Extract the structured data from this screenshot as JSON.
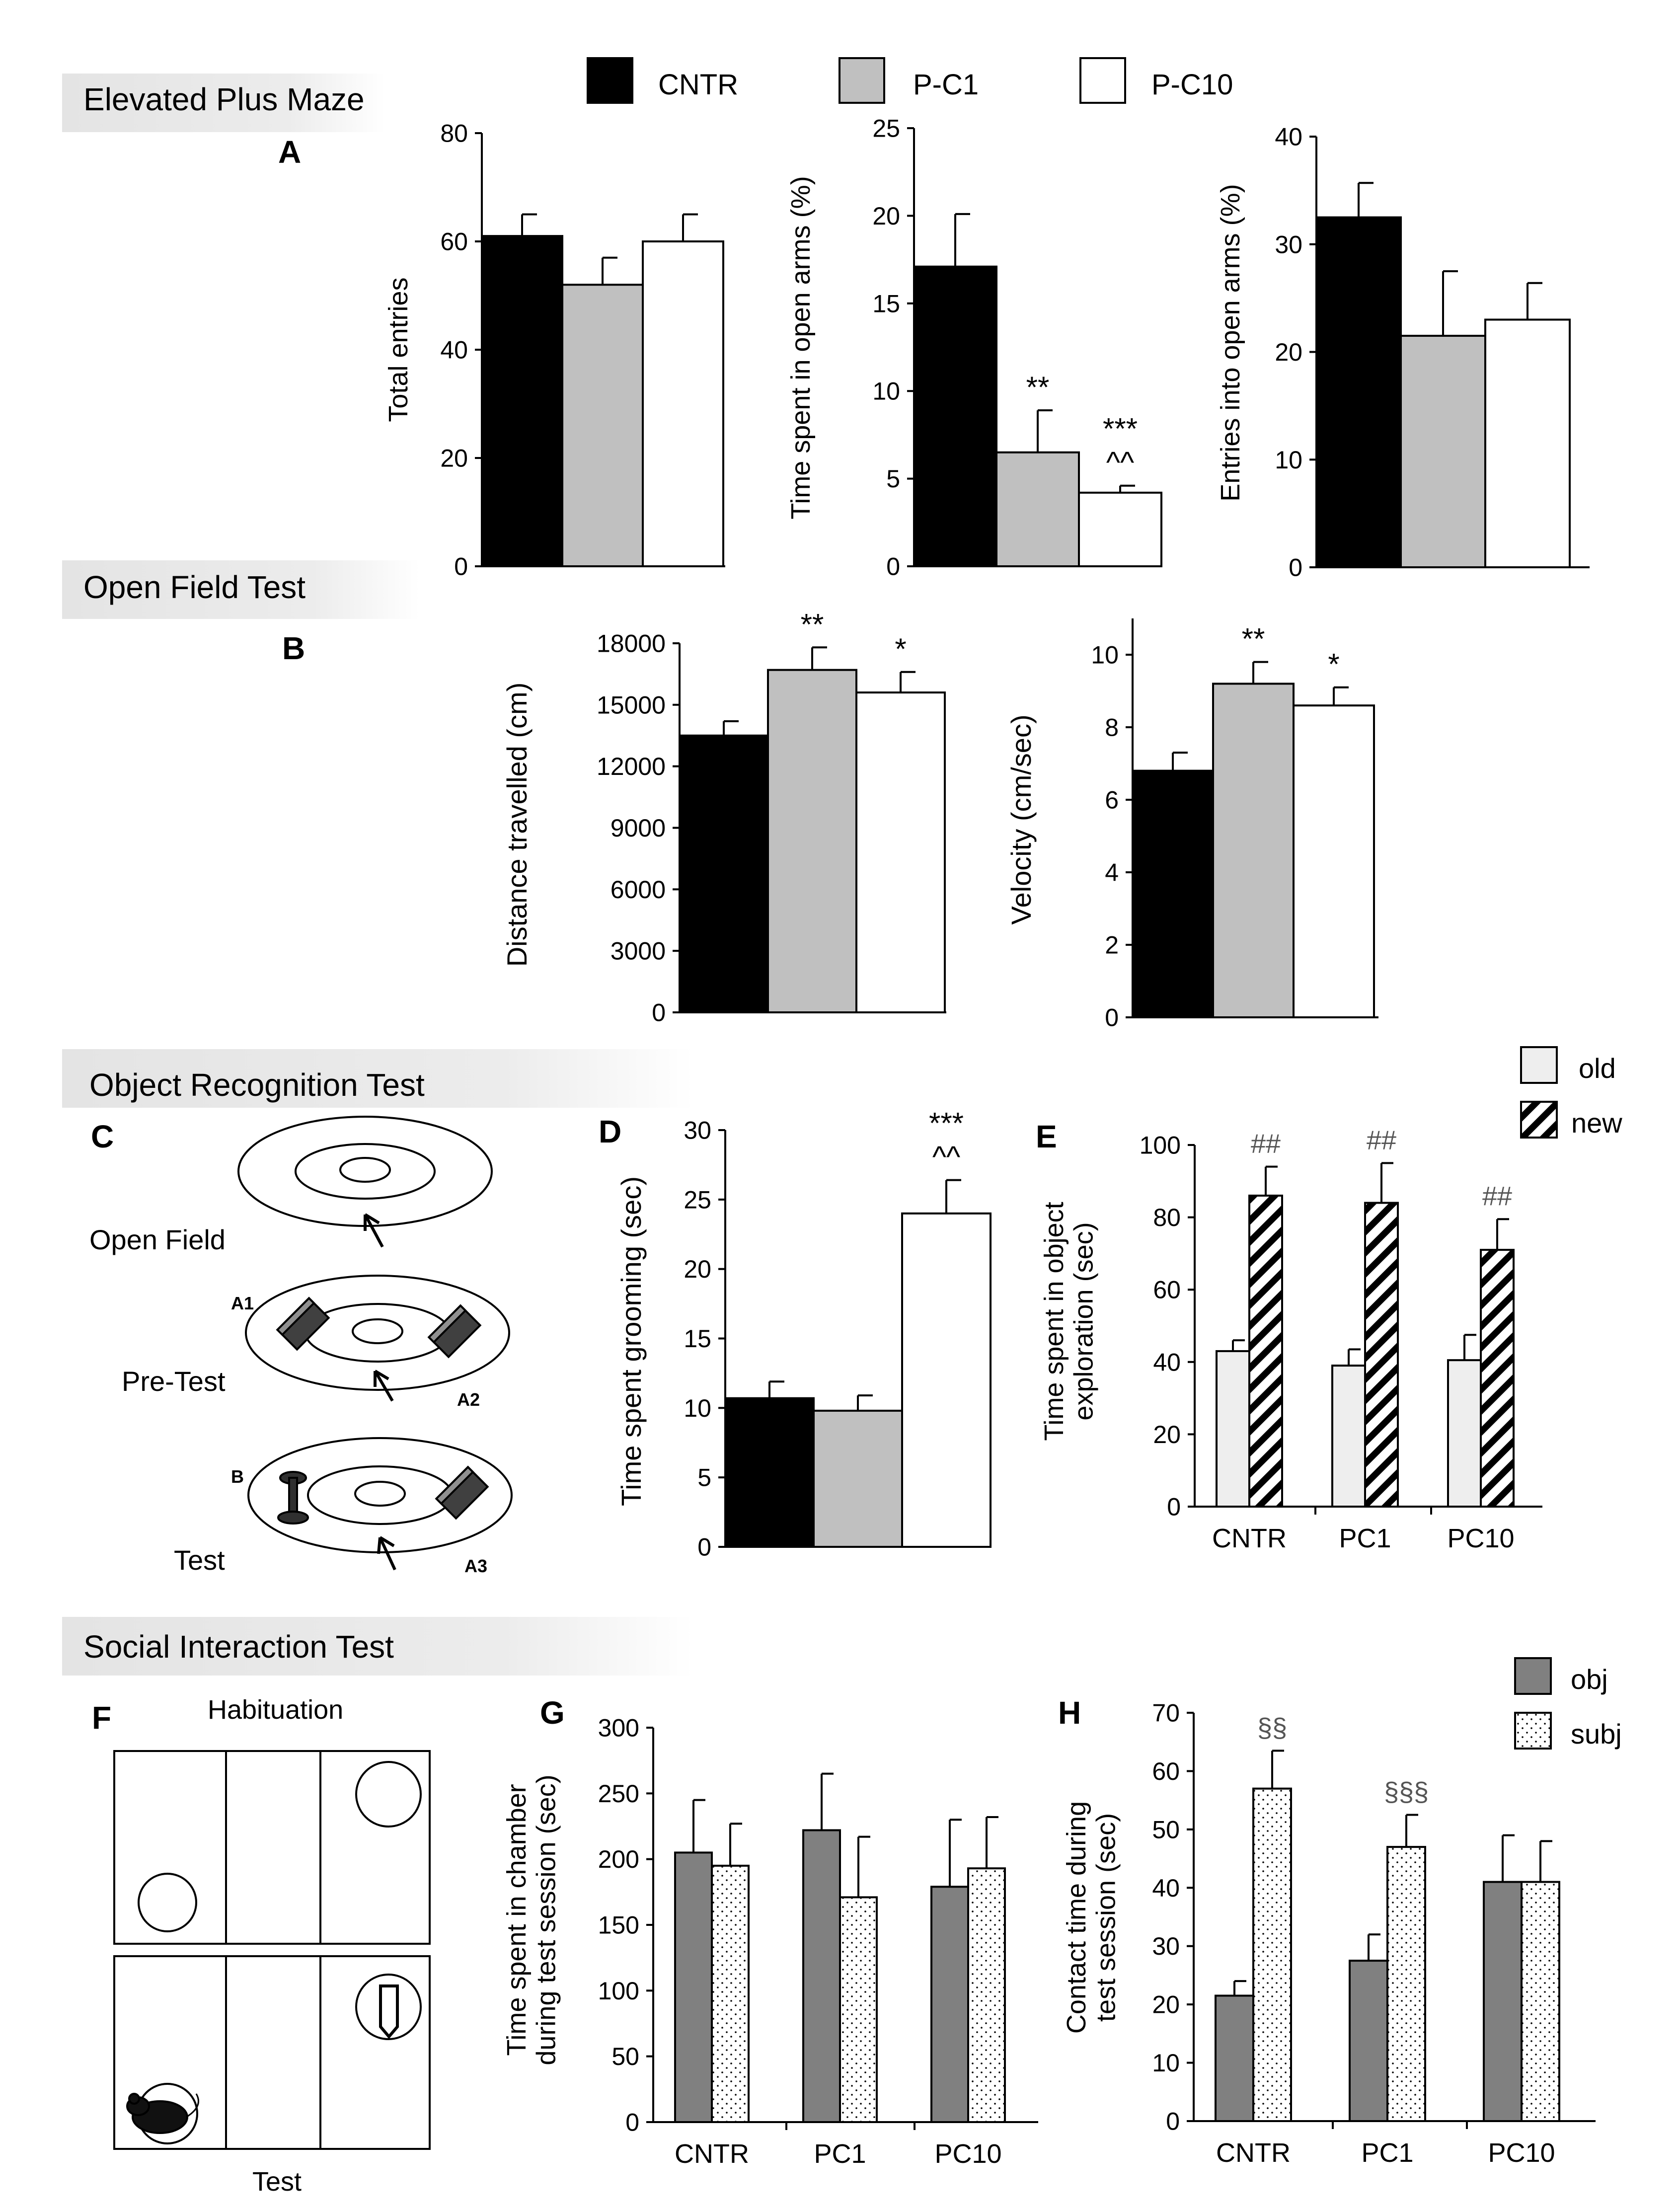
{
  "colors": {
    "cntr": "#000000",
    "pc1": "#c0c0c0",
    "pc10": "#ffffff",
    "old": "#eeeeee",
    "obj": "#808080",
    "axis": "#000000",
    "banner": "#e8e8e8"
  },
  "legends": {
    "groups": [
      "CNTR",
      "P-C1",
      "P-C10"
    ],
    "object": [
      "old",
      "new"
    ],
    "social": [
      "obj",
      "subj"
    ]
  },
  "sections": {
    "epm": "Elevated Plus Maze",
    "oft": "Open Field Test",
    "ort": "Object Recognition Test",
    "sit": "Social Interaction  Test"
  },
  "panel_letters": {
    "A": "A",
    "B": "B",
    "C": "C",
    "D": "D",
    "E": "E",
    "F": "F",
    "G": "G",
    "H": "H"
  },
  "schematics": {
    "C": {
      "labels": [
        "Open Field",
        "Pre-Test",
        "Test"
      ],
      "objects": [
        "A1",
        "A2",
        "B",
        "A3"
      ]
    },
    "F": {
      "labels": [
        "Habituation",
        "Test"
      ]
    }
  },
  "chart_data": [
    {
      "id": "A1",
      "type": "bar",
      "ylabel": "Total entries",
      "categories": [
        "CNTR",
        "P-C1",
        "P-C10"
      ],
      "values": [
        61,
        52,
        60
      ],
      "errors": [
        4,
        5,
        5
      ],
      "ylim": [
        0,
        80
      ],
      "yticks": [
        0,
        20,
        40,
        60,
        80
      ],
      "annotations": [
        [],
        [],
        []
      ]
    },
    {
      "id": "A2",
      "type": "bar",
      "ylabel": "Time spent in open arms (%)",
      "categories": [
        "CNTR",
        "P-C1",
        "P-C10"
      ],
      "values": [
        17.1,
        6.5,
        4.2
      ],
      "errors": [
        3,
        2.4,
        0.4
      ],
      "ylim": [
        0,
        25
      ],
      "yticks": [
        0,
        5,
        10,
        15,
        20,
        25
      ],
      "annotations": [
        [],
        [
          "**"
        ],
        [
          "***",
          "^^"
        ]
      ]
    },
    {
      "id": "A3",
      "type": "bar",
      "ylabel": "Entries into open arms (%)",
      "categories": [
        "CNTR",
        "P-C1",
        "P-C10"
      ],
      "values": [
        32.5,
        21.5,
        23
      ],
      "errors": [
        3.2,
        6,
        3.4
      ],
      "ylim": [
        0,
        40
      ],
      "yticks": [
        0,
        10,
        20,
        30,
        40
      ],
      "annotations": [
        [],
        [],
        []
      ]
    },
    {
      "id": "B1",
      "type": "bar",
      "ylabel": "Distance travelled (cm)",
      "categories": [
        "CNTR",
        "P-C1",
        "P-C10"
      ],
      "values": [
        13500,
        16700,
        15600
      ],
      "errors": [
        700,
        1100,
        1000
      ],
      "ylim": [
        0,
        18000
      ],
      "yticks": [
        0,
        3000,
        6000,
        9000,
        12000,
        15000,
        18000
      ],
      "annotations": [
        [],
        [
          "**"
        ],
        [
          "*"
        ]
      ]
    },
    {
      "id": "B2",
      "type": "bar",
      "ylabel": "Velocity (cm/sec)",
      "categories": [
        "CNTR",
        "P-C1",
        "P-C10"
      ],
      "values": [
        6.8,
        9.2,
        8.6
      ],
      "errors": [
        0.5,
        0.6,
        0.5
      ],
      "ylim": [
        0,
        11
      ],
      "yticks": [
        0,
        2,
        4,
        6,
        8,
        10
      ],
      "annotations": [
        [],
        [
          "**"
        ],
        [
          "*"
        ]
      ]
    },
    {
      "id": "D",
      "type": "bar",
      "ylabel": "Time spent grooming (sec)",
      "categories": [
        "CNTR",
        "P-C1",
        "P-C10"
      ],
      "values": [
        10.7,
        9.8,
        24
      ],
      "errors": [
        1.2,
        1.1,
        2.4
      ],
      "ylim": [
        0,
        30
      ],
      "yticks": [
        0,
        5,
        10,
        15,
        20,
        25,
        30
      ],
      "annotations": [
        [],
        [],
        [
          "***",
          "^^"
        ]
      ]
    },
    {
      "id": "E",
      "type": "bar",
      "ylabel": "Time spent in object exploration (sec)",
      "categories": [
        "CNTR",
        "PC1",
        "PC10"
      ],
      "series": [
        {
          "name": "old",
          "values": [
            43,
            39,
            40.5
          ],
          "errors": [
            3,
            4.5,
            7
          ]
        },
        {
          "name": "new",
          "values": [
            86,
            84,
            71
          ],
          "errors": [
            8,
            11,
            8.5
          ]
        }
      ],
      "ylim": [
        0,
        100
      ],
      "yticks": [
        0,
        20,
        40,
        60,
        80,
        100
      ],
      "annotations": [
        "##",
        "##",
        "##"
      ]
    },
    {
      "id": "G",
      "type": "bar",
      "ylabel": "Time spent in chamber during test session (sec)",
      "categories": [
        "CNTR",
        "PC1",
        "PC10"
      ],
      "series": [
        {
          "name": "obj",
          "values": [
            205,
            222,
            179
          ],
          "errors": [
            40,
            43,
            51
          ]
        },
        {
          "name": "subj",
          "values": [
            195,
            171,
            193
          ],
          "errors": [
            32,
            46,
            39
          ]
        }
      ],
      "ylim": [
        0,
        300
      ],
      "yticks": [
        0,
        50,
        100,
        150,
        200,
        250,
        300
      ],
      "annotations": [
        "",
        "",
        ""
      ]
    },
    {
      "id": "H",
      "type": "bar",
      "ylabel": "Contact time during test session (sec)",
      "categories": [
        "CNTR",
        "PC1",
        "PC10"
      ],
      "series": [
        {
          "name": "obj",
          "values": [
            21.5,
            27.5,
            41
          ],
          "errors": [
            2.5,
            4.5,
            8
          ]
        },
        {
          "name": "subj",
          "values": [
            57,
            47,
            41
          ],
          "errors": [
            6.5,
            5.5,
            7
          ]
        }
      ],
      "ylim": [
        0,
        70
      ],
      "yticks": [
        0,
        10,
        20,
        30,
        40,
        50,
        60,
        70
      ],
      "annotations": [
        "§§",
        "§§§",
        ""
      ]
    }
  ]
}
